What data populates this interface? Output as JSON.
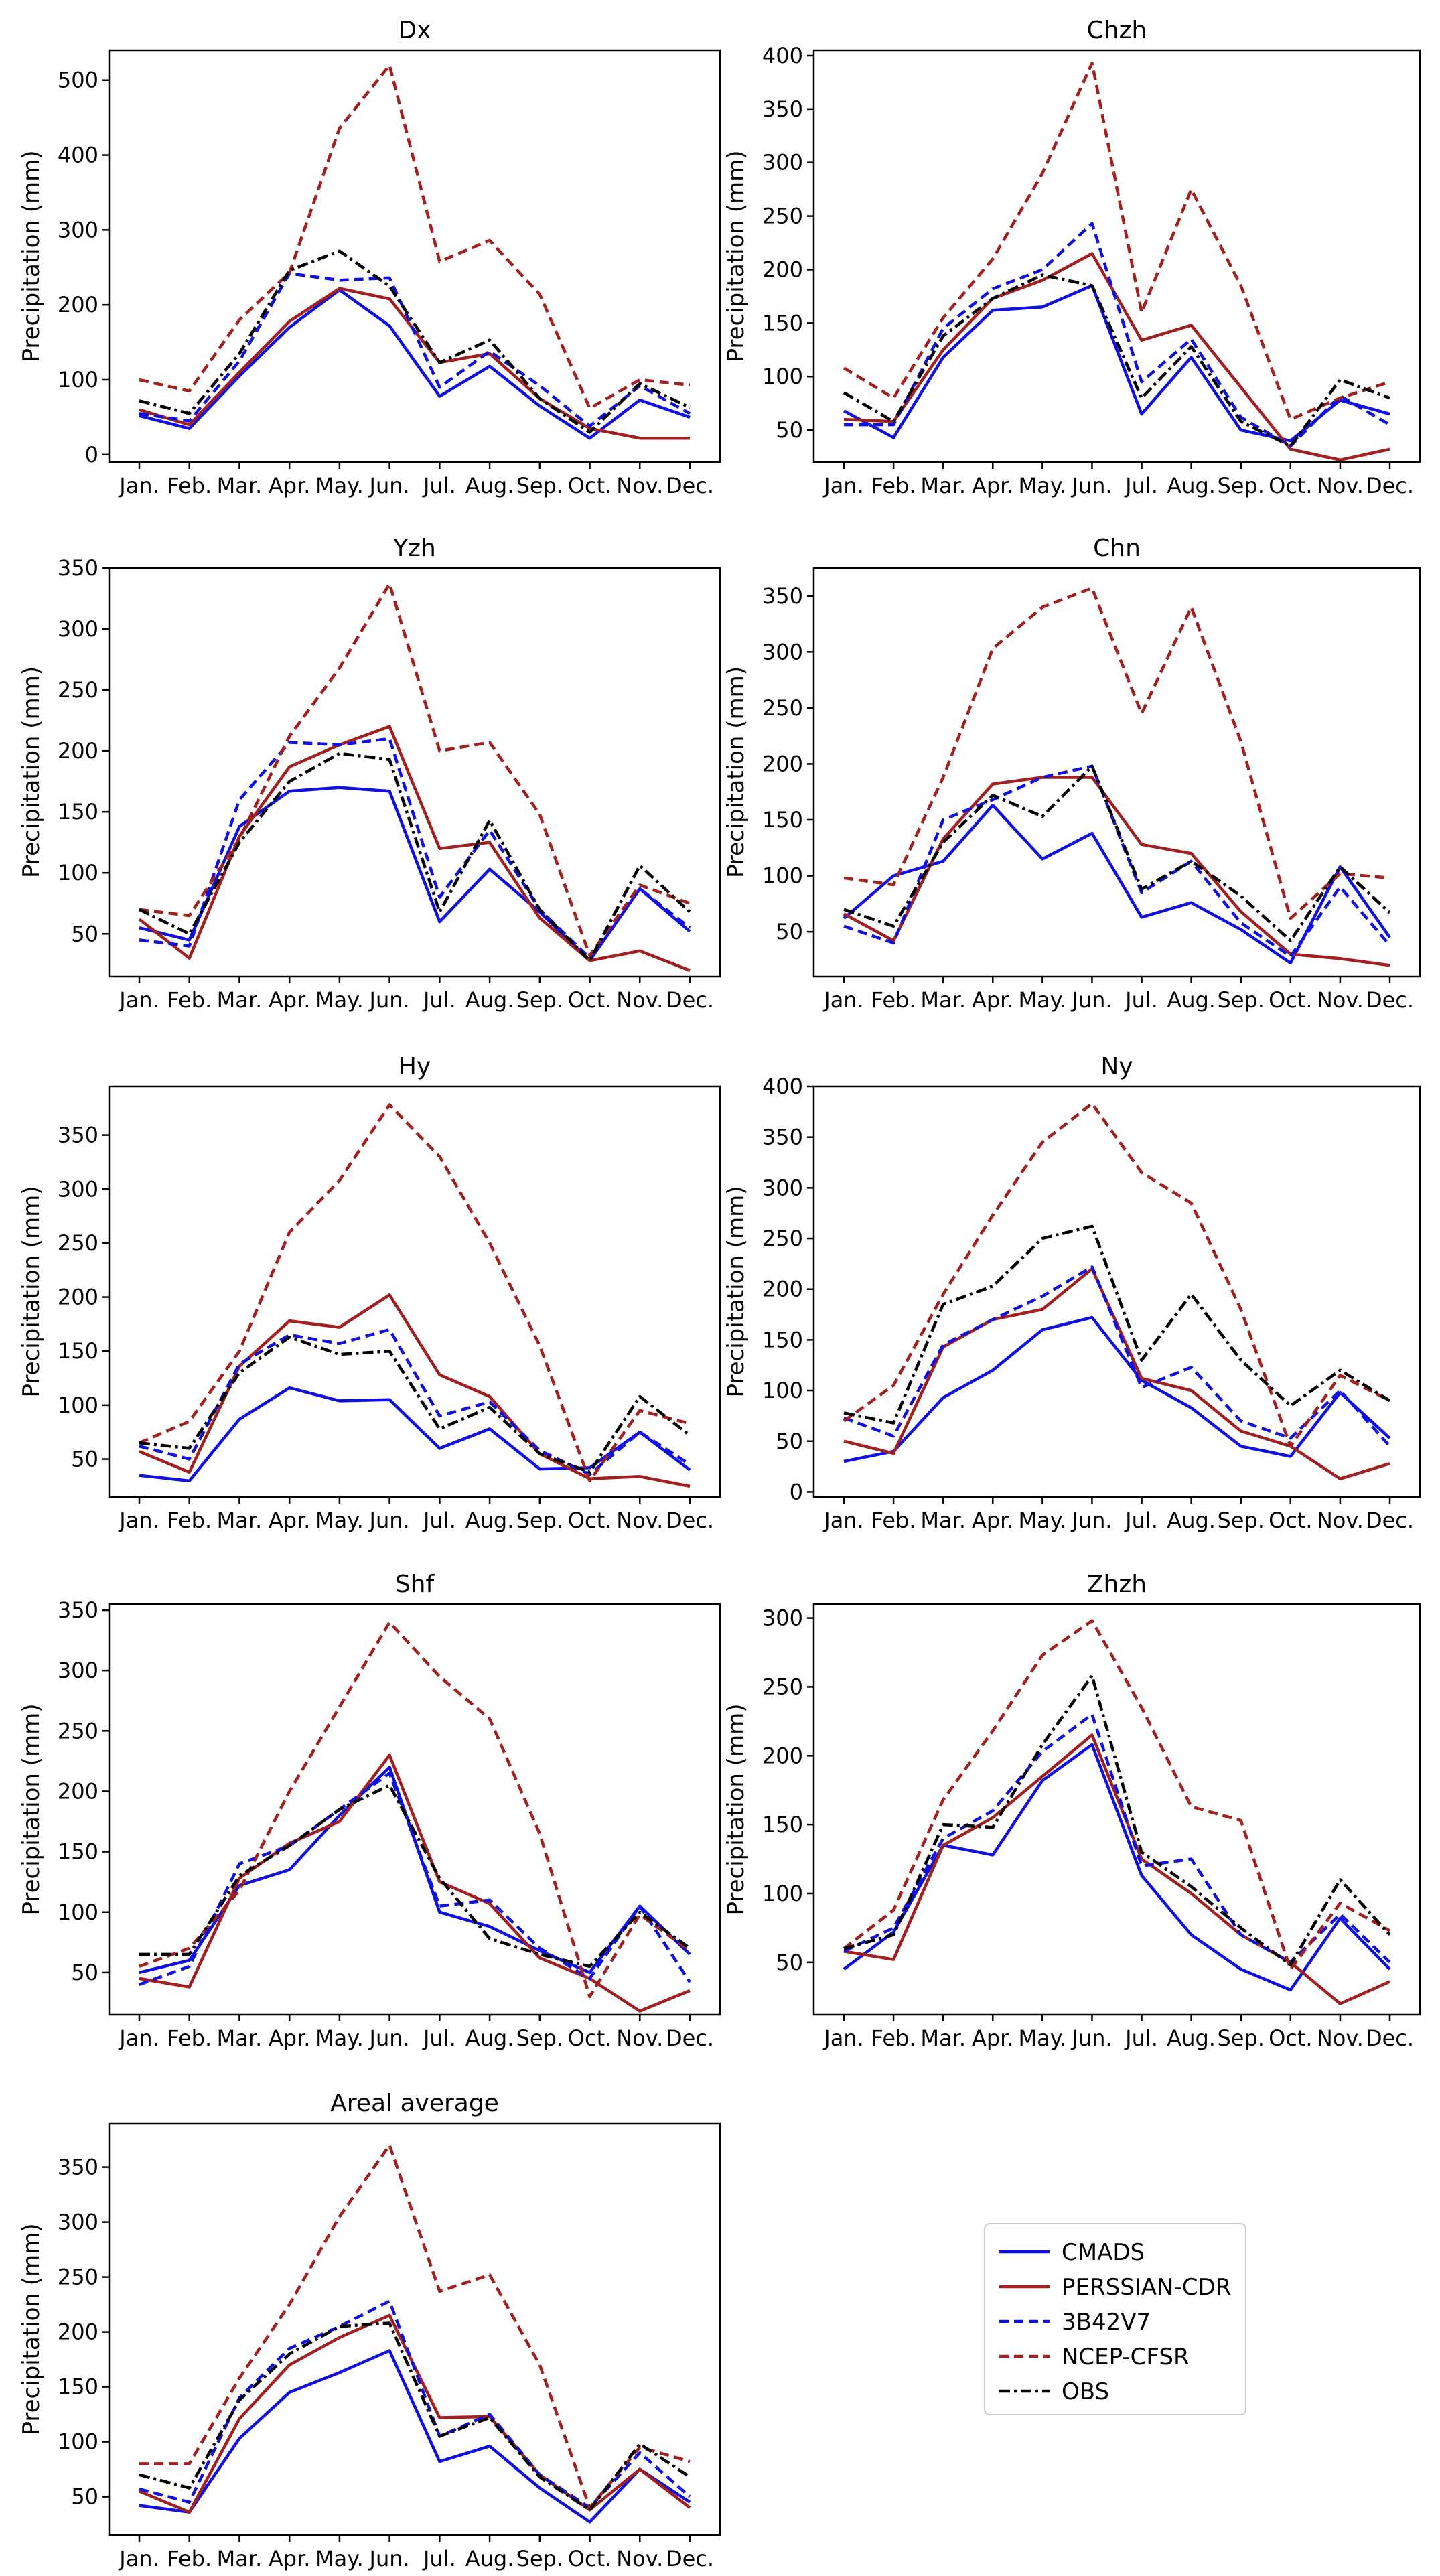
{
  "chart_data": {
    "type": "line",
    "ylabel": "Precipitation (mm)",
    "months": [
      "Jan.",
      "Feb.",
      "Mar.",
      "Apr.",
      "May.",
      "Jun.",
      "Jul.",
      "Aug.",
      "Sep.",
      "Oct.",
      "Nov.",
      "Dec."
    ],
    "legend": {
      "placement": "lower-right",
      "entries": [
        "CMADS",
        "PERSSIAN-CDR",
        "3B42V7",
        "NCEP-CFSR",
        "OBS"
      ]
    },
    "series_styles": [
      {
        "name": "CMADS",
        "color": "#1010e0",
        "dash": "solid"
      },
      {
        "name": "PERSSIAN-CDR",
        "color": "#a32020",
        "dash": "solid"
      },
      {
        "name": "3B42V7",
        "color": "#1010e0",
        "dash": "dashed"
      },
      {
        "name": "NCEP-CFSR",
        "color": "#a32020",
        "dash": "dashed"
      },
      {
        "name": "OBS",
        "color": "#000000",
        "dash": "dashdot"
      }
    ],
    "panels": [
      {
        "title": "Dx",
        "ylim": [
          -10,
          540
        ],
        "yticks": [
          0,
          100,
          200,
          300,
          400,
          500
        ],
        "series": [
          {
            "name": "CMADS",
            "values": [
              52,
              35,
              105,
              170,
              220,
              172,
              78,
              118,
              65,
              22,
              73,
              50
            ]
          },
          {
            "name": "PERSSIAN-CDR",
            "values": [
              60,
              40,
              110,
              178,
              222,
              208,
              123,
              135,
              75,
              35,
              22,
              22
            ]
          },
          {
            "name": "3B42V7",
            "values": [
              55,
              45,
              125,
              242,
              233,
              236,
              90,
              138,
              92,
              38,
              92,
              55
            ]
          },
          {
            "name": "NCEP-CFSR",
            "values": [
              100,
              85,
              180,
              243,
              436,
              520,
              258,
              286,
              214,
              62,
              100,
              93
            ]
          },
          {
            "name": "OBS",
            "values": [
              72,
              55,
              135,
              246,
              272,
              225,
              123,
              153,
              75,
              30,
              95,
              63
            ]
          }
        ]
      },
      {
        "title": "Chzh",
        "ylim": [
          20,
          405
        ],
        "yticks": [
          50,
          100,
          150,
          200,
          250,
          300,
          350,
          400
        ],
        "series": [
          {
            "name": "CMADS",
            "values": [
              68,
              43,
              118,
              162,
              165,
              185,
              65,
              118,
              50,
              40,
              78,
              65
            ]
          },
          {
            "name": "PERSSIAN-CDR",
            "values": [
              60,
              58,
              125,
              173,
              190,
              215,
              134,
              148,
              90,
              32,
              22,
              32
            ]
          },
          {
            "name": "3B42V7",
            "values": [
              55,
              55,
              145,
              182,
              200,
              243,
              95,
              135,
              62,
              35,
              82,
              55
            ]
          },
          {
            "name": "NCEP-CFSR",
            "values": [
              108,
              80,
              155,
              210,
              290,
              393,
              160,
              275,
              185,
              60,
              80,
              95
            ]
          },
          {
            "name": "OBS",
            "values": [
              85,
              58,
              138,
              173,
              195,
              185,
              80,
              128,
              58,
              35,
              97,
              80
            ]
          }
        ]
      },
      {
        "title": "Yzh",
        "ylim": [
          15,
          350
        ],
        "yticks": [
          50,
          100,
          150,
          200,
          250,
          300,
          350
        ],
        "series": [
          {
            "name": "CMADS",
            "values": [
              55,
              45,
              138,
              167,
              170,
              167,
              60,
              103,
              68,
              28,
              87,
              52
            ]
          },
          {
            "name": "PERSSIAN-CDR",
            "values": [
              62,
              30,
              130,
              187,
              205,
              220,
              120,
              125,
              63,
              28,
              36,
              20
            ]
          },
          {
            "name": "3B42V7",
            "values": [
              45,
              40,
              160,
              207,
              205,
              210,
              80,
              135,
              70,
              30,
              87,
              55
            ]
          },
          {
            "name": "NCEP-CFSR",
            "values": [
              70,
              65,
              128,
              212,
              268,
              337,
              200,
              207,
              148,
              32,
              90,
              75
            ]
          },
          {
            "name": "OBS",
            "values": [
              70,
              50,
              125,
              175,
              198,
              193,
              68,
              143,
              70,
              28,
              106,
              68
            ]
          }
        ]
      },
      {
        "title": "Chn",
        "ylim": [
          10,
          375
        ],
        "yticks": [
          50,
          100,
          150,
          200,
          250,
          300,
          350
        ],
        "series": [
          {
            "name": "CMADS",
            "values": [
              62,
              100,
              113,
              163,
              115,
              138,
              63,
              76,
              52,
              22,
              108,
              45
            ]
          },
          {
            "name": "PERSSIAN-CDR",
            "values": [
              66,
              42,
              133,
              182,
              188,
              188,
              128,
              120,
              68,
              30,
              26,
              20
            ]
          },
          {
            "name": "3B42V7",
            "values": [
              55,
              40,
              150,
              168,
              188,
              198,
              85,
              113,
              58,
              28,
              90,
              38
            ]
          },
          {
            "name": "NCEP-CFSR",
            "values": [
              98,
              92,
              188,
              303,
              340,
              357,
              245,
              340,
              220,
              62,
              102,
              98
            ]
          },
          {
            "name": "OBS",
            "values": [
              70,
              55,
              130,
              172,
              153,
              198,
              88,
              113,
              82,
              42,
              108,
              67
            ]
          }
        ]
      },
      {
        "title": "Hy",
        "ylim": [
          15,
          395
        ],
        "yticks": [
          50,
          100,
          150,
          200,
          250,
          300,
          350
        ],
        "series": [
          {
            "name": "CMADS",
            "values": [
              35,
              30,
              87,
              116,
              104,
              105,
              60,
              78,
              41,
              42,
              75,
              40
            ]
          },
          {
            "name": "PERSSIAN-CDR",
            "values": [
              57,
              38,
              136,
              178,
              172,
              202,
              128,
              108,
              55,
              32,
              34,
              25
            ]
          },
          {
            "name": "3B42V7",
            "values": [
              62,
              50,
              138,
              165,
              157,
              170,
              90,
              103,
              58,
              36,
              75,
              45
            ]
          },
          {
            "name": "NCEP-CFSR",
            "values": [
              65,
              85,
              150,
              260,
              308,
              378,
              330,
              250,
              155,
              30,
              95,
              83
            ]
          },
          {
            "name": "OBS",
            "values": [
              65,
              60,
              130,
              163,
              147,
              150,
              78,
              98,
              55,
              38,
              108,
              72
            ]
          }
        ]
      },
      {
        "title": "Ny",
        "ylim": [
          -5,
          400
        ],
        "yticks": [
          0,
          50,
          100,
          150,
          200,
          250,
          300,
          350,
          400
        ],
        "series": [
          {
            "name": "CMADS",
            "values": [
              30,
              40,
              93,
              120,
              160,
              172,
              110,
              83,
              45,
              35,
              98,
              53
            ]
          },
          {
            "name": "PERSSIAN-CDR",
            "values": [
              50,
              38,
              143,
              170,
              180,
              220,
              112,
              100,
              60,
              45,
              13,
              28
            ]
          },
          {
            "name": "3B42V7",
            "values": [
              73,
              55,
              145,
              170,
              193,
              222,
              103,
              123,
              70,
              53,
              100,
              45
            ]
          },
          {
            "name": "NCEP-CFSR",
            "values": [
              70,
              105,
              195,
              273,
              345,
              383,
              315,
              285,
              180,
              45,
              115,
              90
            ]
          },
          {
            "name": "OBS",
            "values": [
              78,
              68,
              185,
              203,
              250,
              262,
              130,
              195,
              130,
              85,
              120,
              90
            ]
          }
        ]
      },
      {
        "title": "Shf",
        "ylim": [
          15,
          355
        ],
        "yticks": [
          50,
          100,
          150,
          200,
          250,
          300,
          350
        ],
        "series": [
          {
            "name": "CMADS",
            "values": [
              50,
              60,
              122,
              135,
              180,
              220,
              100,
              88,
              68,
              50,
              105,
              65
            ]
          },
          {
            "name": "PERSSIAN-CDR",
            "values": [
              45,
              38,
              128,
              157,
              175,
              230,
              125,
              107,
              62,
              45,
              18,
              35
            ]
          },
          {
            "name": "3B42V7",
            "values": [
              40,
              55,
              140,
              155,
              185,
              215,
              105,
              110,
              70,
              45,
              105,
              42
            ]
          },
          {
            "name": "NCEP-CFSR",
            "values": [
              55,
              70,
              118,
              200,
              270,
              340,
              295,
              260,
              165,
              30,
              98,
              68
            ]
          },
          {
            "name": "OBS",
            "values": [
              65,
              65,
              130,
              155,
              185,
              205,
              128,
              78,
              65,
              55,
              100,
              70
            ]
          }
        ]
      },
      {
        "title": "Zhzh",
        "ylim": [
          12,
          310
        ],
        "yticks": [
          50,
          100,
          150,
          200,
          250,
          300
        ],
        "series": [
          {
            "name": "CMADS",
            "values": [
              45,
              72,
              135,
              128,
              182,
              208,
              113,
              70,
              45,
              30,
              82,
              45
            ]
          },
          {
            "name": "PERSSIAN-CDR",
            "values": [
              58,
              52,
              135,
              155,
              185,
              215,
              125,
              100,
              70,
              50,
              20,
              36
            ]
          },
          {
            "name": "3B42V7",
            "values": [
              58,
              75,
              140,
              160,
              203,
              230,
              120,
              125,
              70,
              50,
              85,
              50
            ]
          },
          {
            "name": "NCEP-CFSR",
            "values": [
              60,
              88,
              168,
              218,
              273,
              298,
              235,
              163,
              153,
              45,
              93,
              73
            ]
          },
          {
            "name": "OBS",
            "values": [
              60,
              70,
              150,
              148,
              208,
              258,
              130,
              105,
              75,
              48,
              110,
              70
            ]
          }
        ]
      },
      {
        "title": "Areal average",
        "ylim": [
          15,
          390
        ],
        "yticks": [
          50,
          100,
          150,
          200,
          250,
          300,
          350
        ],
        "series": [
          {
            "name": "CMADS",
            "values": [
              42,
              36,
              103,
              145,
              163,
              183,
              82,
              96,
              58,
              27,
              75,
              45
            ]
          },
          {
            "name": "PERSSIAN-CDR",
            "values": [
              55,
              36,
              121,
              170,
              195,
              215,
              122,
              123,
              70,
              38,
              75,
              40
            ]
          },
          {
            "name": "3B42V7",
            "values": [
              57,
              45,
              140,
              185,
              205,
              228,
              105,
              125,
              70,
              40,
              90,
              50
            ]
          },
          {
            "name": "NCEP-CFSR",
            "values": [
              80,
              80,
              158,
              225,
              305,
              370,
              237,
              252,
              170,
              40,
              95,
              82
            ]
          },
          {
            "name": "OBS",
            "values": [
              70,
              58,
              138,
              180,
              205,
              208,
              105,
              122,
              68,
              38,
              98,
              68
            ]
          }
        ]
      }
    ]
  }
}
